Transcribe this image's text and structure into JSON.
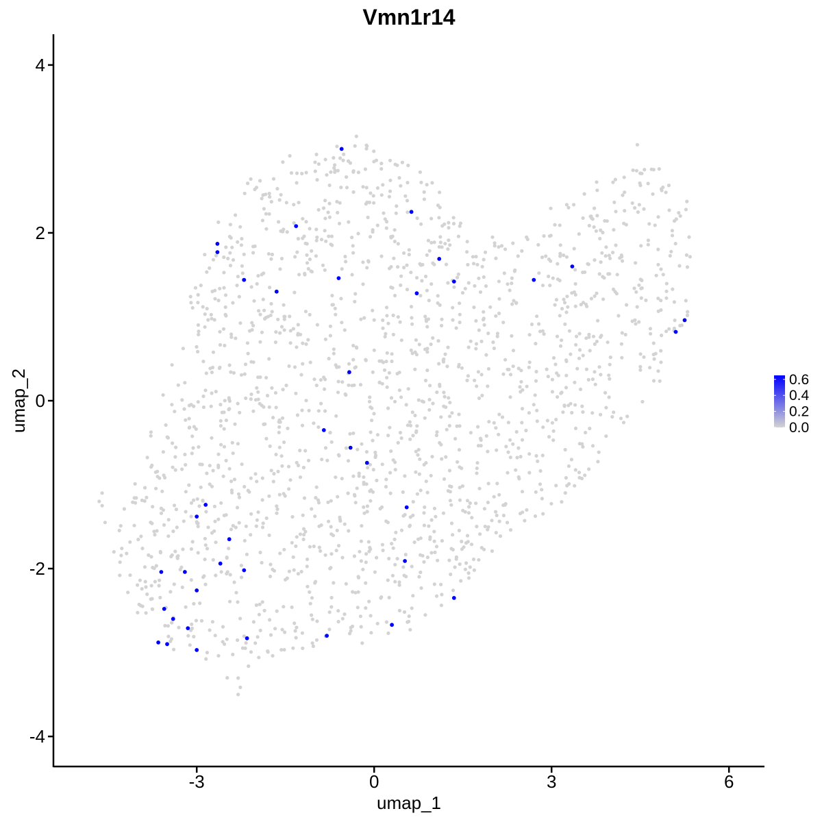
{
  "chart_data": {
    "type": "scatter",
    "title": "Vmn1r14",
    "xlabel": "umap_1",
    "ylabel": "umap_2",
    "xlim": [
      -5.4,
      6.6
    ],
    "ylim": [
      -4.35,
      4.35
    ],
    "x_ticks": [
      -3,
      0,
      3,
      6
    ],
    "y_ticks": [
      -4,
      -2,
      0,
      2,
      4
    ],
    "x_tick_labels": [
      "-3",
      "0",
      "3",
      "6"
    ],
    "y_tick_labels": [
      "-4",
      "-2",
      "0",
      "2",
      "4"
    ],
    "grid": false,
    "legend": {
      "placement": "right",
      "type": "colorbar",
      "range": [
        0,
        0.65
      ],
      "ticks": [
        0,
        0.2,
        0.4,
        0.6
      ],
      "tick_labels": [
        "0.0",
        "0.2",
        "0.4",
        "0.6"
      ],
      "low_color": "#d3d3d3",
      "high_color": "#0000ff"
    },
    "background_color": "#d3d3d3",
    "expressed_color": "#0000ff",
    "background_cell_count": 1800,
    "expressing_cells": [
      {
        "x": -0.55,
        "y": 3.0,
        "value": 0.65
      },
      {
        "x": 0.63,
        "y": 2.25,
        "value": 0.65
      },
      {
        "x": -1.32,
        "y": 2.08,
        "value": 0.65
      },
      {
        "x": -2.65,
        "y": 1.87,
        "value": 0.65
      },
      {
        "x": -2.65,
        "y": 1.77,
        "value": 0.65
      },
      {
        "x": 1.1,
        "y": 1.69,
        "value": 0.65
      },
      {
        "x": 3.35,
        "y": 1.6,
        "value": 0.65
      },
      {
        "x": -2.2,
        "y": 1.44,
        "value": 0.65
      },
      {
        "x": -0.6,
        "y": 1.46,
        "value": 0.65
      },
      {
        "x": 1.35,
        "y": 1.42,
        "value": 0.65
      },
      {
        "x": 2.7,
        "y": 1.44,
        "value": 0.65
      },
      {
        "x": -1.65,
        "y": 1.3,
        "value": 0.65
      },
      {
        "x": 0.72,
        "y": 1.28,
        "value": 0.65
      },
      {
        "x": 5.25,
        "y": 0.96,
        "value": 0.65
      },
      {
        "x": 5.1,
        "y": 0.82,
        "value": 0.65
      },
      {
        "x": -0.42,
        "y": 0.34,
        "value": 0.65
      },
      {
        "x": -0.85,
        "y": -0.35,
        "value": 0.65
      },
      {
        "x": -0.4,
        "y": -0.56,
        "value": 0.65
      },
      {
        "x": -0.12,
        "y": -0.74,
        "value": 0.65
      },
      {
        "x": -2.85,
        "y": -1.24,
        "value": 0.65
      },
      {
        "x": -3.0,
        "y": -1.38,
        "value": 0.65
      },
      {
        "x": 0.55,
        "y": -1.27,
        "value": 0.65
      },
      {
        "x": -2.45,
        "y": -1.65,
        "value": 0.65
      },
      {
        "x": -2.6,
        "y": -1.94,
        "value": 0.65
      },
      {
        "x": 0.52,
        "y": -1.91,
        "value": 0.65
      },
      {
        "x": -3.6,
        "y": -2.04,
        "value": 0.65
      },
      {
        "x": -3.2,
        "y": -2.04,
        "value": 0.65
      },
      {
        "x": -2.2,
        "y": -2.02,
        "value": 0.65
      },
      {
        "x": -3.0,
        "y": -2.26,
        "value": 0.65
      },
      {
        "x": 1.35,
        "y": -2.35,
        "value": 0.65
      },
      {
        "x": -3.55,
        "y": -2.48,
        "value": 0.65
      },
      {
        "x": -3.4,
        "y": -2.6,
        "value": 0.65
      },
      {
        "x": -3.15,
        "y": -2.71,
        "value": 0.65
      },
      {
        "x": 0.3,
        "y": -2.67,
        "value": 0.65
      },
      {
        "x": -0.8,
        "y": -2.8,
        "value": 0.65
      },
      {
        "x": -2.15,
        "y": -2.83,
        "value": 0.65
      },
      {
        "x": -3.65,
        "y": -2.88,
        "value": 0.65
      },
      {
        "x": -3.5,
        "y": -2.9,
        "value": 0.65
      },
      {
        "x": -3.0,
        "y": -2.97,
        "value": 0.65
      }
    ]
  }
}
